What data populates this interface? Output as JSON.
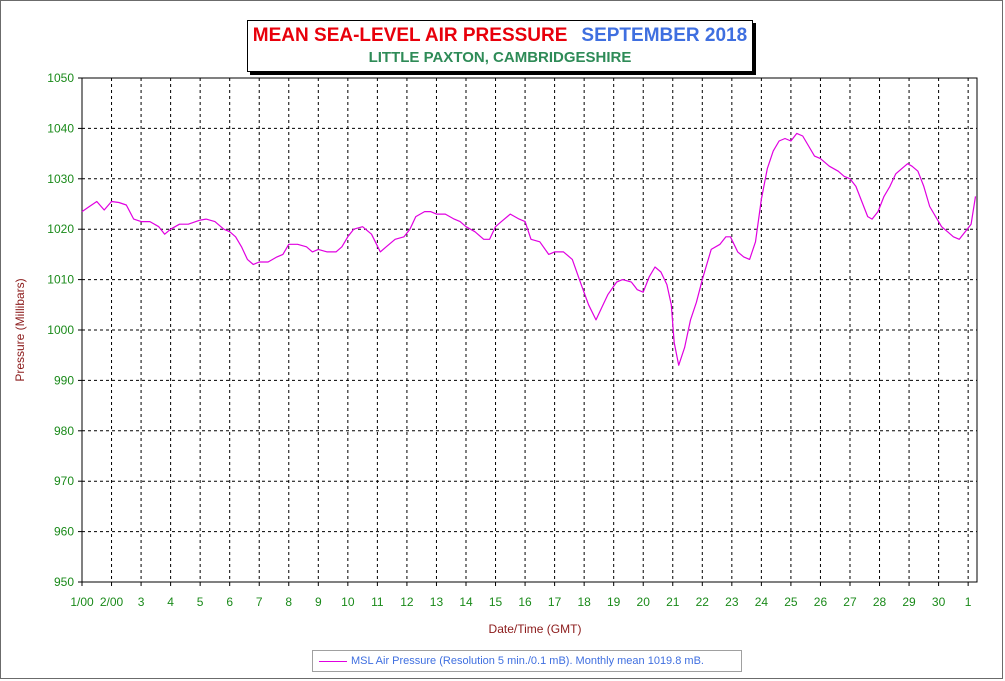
{
  "title": {
    "main": "MEAN SEA-LEVEL AIR PRESSURE",
    "period": "SEPTEMBER 2018",
    "location": "LITTLE PAXTON, CAMBRIDGESHIRE"
  },
  "legend": {
    "label": "MSL Air Pressure (Resolution 5 min./0.1 mB). Monthly mean 1019.8 mB."
  },
  "colors": {
    "series": "#e000e0",
    "title_main": "#e8000b",
    "title_period": "#3f6fe0",
    "subtitle": "#2e8b57",
    "axis_label": "#8b1a1a",
    "tick_label": "#1a8a1a",
    "grid": "#000000"
  },
  "chart_data": {
    "type": "line",
    "title": "MEAN SEA-LEVEL AIR PRESSURE  SEPTEMBER 2018",
    "subtitle": "LITTLE PAXTON, CAMBRIDGESHIRE",
    "xlabel": "Date/Time (GMT)",
    "ylabel": "Pressure (Millibars)",
    "x_unit": "day of September 2018 (GMT)",
    "xlim": [
      1.0,
      31.3
    ],
    "ylim": [
      950,
      1050
    ],
    "grid": true,
    "legend_position": "bottom-center",
    "x_ticks": [
      1,
      2,
      3,
      4,
      5,
      6,
      7,
      8,
      9,
      10,
      11,
      12,
      13,
      14,
      15,
      16,
      17,
      18,
      19,
      20,
      21,
      22,
      23,
      24,
      25,
      26,
      27,
      28,
      29,
      30,
      31
    ],
    "x_tick_labels": [
      "1/00",
      "2/00",
      "3",
      "4",
      "5",
      "6",
      "7",
      "8",
      "9",
      "10",
      "11",
      "12",
      "13",
      "14",
      "15",
      "16",
      "17",
      "18",
      "19",
      "20",
      "21",
      "22",
      "23",
      "24",
      "25",
      "26",
      "27",
      "28",
      "29",
      "30",
      "1"
    ],
    "y_ticks": [
      950,
      960,
      970,
      980,
      990,
      1000,
      1010,
      1020,
      1030,
      1040,
      1050
    ],
    "y_tick_labels": [
      "950",
      "960",
      "970",
      "980",
      "990",
      "1000",
      "1010",
      "1020",
      "1030",
      "1040",
      "1050"
    ],
    "series": [
      {
        "name": "MSL Air Pressure (Resolution 5 min./0.1 mB). Monthly mean 1019.8 mB.",
        "x": [
          1.0,
          1.25,
          1.5,
          1.75,
          2.0,
          2.25,
          2.5,
          2.75,
          3.0,
          3.3,
          3.6,
          3.8,
          4.0,
          4.3,
          4.6,
          5.0,
          5.2,
          5.5,
          5.8,
          6.0,
          6.2,
          6.4,
          6.6,
          6.8,
          7.0,
          7.3,
          7.6,
          7.8,
          8.0,
          8.3,
          8.6,
          8.8,
          9.0,
          9.3,
          9.6,
          9.8,
          10.0,
          10.2,
          10.5,
          10.8,
          11.1,
          11.3,
          11.6,
          11.9,
          12.1,
          12.3,
          12.6,
          12.8,
          13.0,
          13.3,
          13.6,
          13.8,
          14.0,
          14.3,
          14.6,
          14.8,
          15.0,
          15.2,
          15.5,
          15.8,
          16.0,
          16.2,
          16.5,
          16.8,
          17.0,
          17.3,
          17.6,
          17.9,
          18.15,
          18.4,
          18.6,
          18.8,
          19.1,
          19.3,
          19.6,
          19.8,
          20.0,
          20.2,
          20.4,
          20.6,
          20.8,
          20.95,
          21.05,
          21.2,
          21.4,
          21.6,
          21.8,
          22.0,
          22.3,
          22.6,
          22.8,
          22.95,
          23.2,
          23.4,
          23.6,
          23.8,
          24.0,
          24.2,
          24.4,
          24.6,
          24.8,
          25.0,
          25.2,
          25.4,
          25.6,
          25.8,
          26.0,
          26.3,
          26.6,
          26.8,
          27.0,
          27.2,
          27.4,
          27.6,
          27.75,
          27.95,
          28.15,
          28.35,
          28.55,
          28.75,
          28.95,
          29.1,
          29.3,
          29.5,
          29.7,
          29.9,
          30.1,
          30.3,
          30.5,
          30.7,
          30.9,
          31.1,
          31.25
        ],
        "values": [
          1023.5,
          1024.5,
          1025.5,
          1023.8,
          1025.5,
          1025.3,
          1024.8,
          1022.0,
          1021.5,
          1021.5,
          1020.5,
          1019.0,
          1020.0,
          1021.0,
          1021.0,
          1021.8,
          1022.0,
          1021.5,
          1020.0,
          1019.5,
          1018.5,
          1016.5,
          1014.0,
          1013.0,
          1013.5,
          1013.5,
          1014.5,
          1015.0,
          1017.0,
          1017.0,
          1016.5,
          1015.5,
          1016.0,
          1015.5,
          1015.5,
          1016.5,
          1018.5,
          1020.0,
          1020.5,
          1019.0,
          1015.5,
          1016.5,
          1018.0,
          1018.5,
          1020.0,
          1022.5,
          1023.5,
          1023.5,
          1023.0,
          1023.0,
          1022.0,
          1021.5,
          1020.5,
          1019.5,
          1018.0,
          1018.0,
          1020.5,
          1021.5,
          1023.0,
          1022.0,
          1021.5,
          1018.0,
          1017.5,
          1015.0,
          1015.5,
          1015.5,
          1014.0,
          1009.0,
          1005.0,
          1002.0,
          1004.5,
          1007.0,
          1009.5,
          1010.0,
          1009.5,
          1008.0,
          1007.5,
          1010.5,
          1012.5,
          1011.5,
          1009.0,
          1005.0,
          997.5,
          993.0,
          996.5,
          1002.0,
          1005.5,
          1010.0,
          1016.0,
          1017.0,
          1018.5,
          1018.5,
          1015.5,
          1014.5,
          1014.0,
          1017.5,
          1026.0,
          1032.0,
          1035.5,
          1037.5,
          1038.0,
          1037.5,
          1039.0,
          1038.5,
          1036.5,
          1034.5,
          1034.0,
          1032.5,
          1031.5,
          1030.5,
          1030.0,
          1028.5,
          1025.5,
          1022.5,
          1022.0,
          1023.5,
          1026.5,
          1028.5,
          1031.0,
          1032.0,
          1033.0,
          1032.5,
          1031.5,
          1028.5,
          1024.5,
          1022.5,
          1020.5,
          1019.5,
          1018.5,
          1018.0,
          1019.5,
          1021.0,
          1026.5
        ]
      }
    ]
  }
}
